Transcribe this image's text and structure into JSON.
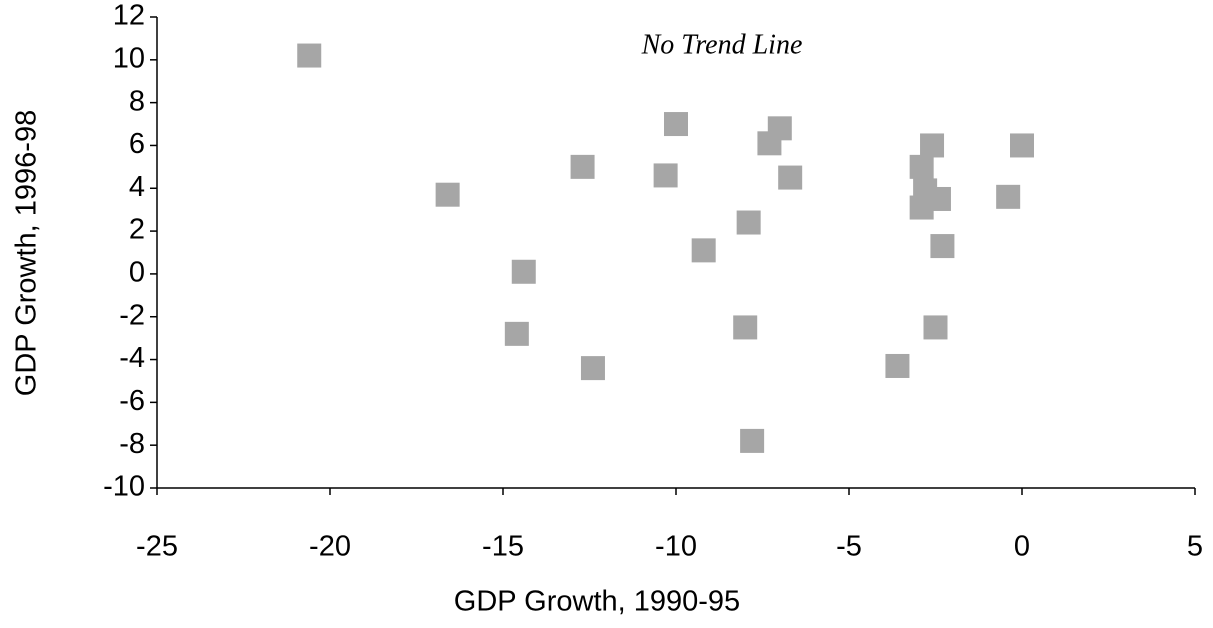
{
  "chart_data": {
    "type": "scatter",
    "annotation": "No Trend Line",
    "x_label": "GDP Growth, 1990-95",
    "y_label": "GDP Growth, 1996-98",
    "color": "#a6a6a6",
    "marker": "square",
    "x": [
      -20.6,
      -16.6,
      -14.4,
      -14.6,
      -12.7,
      -12.4,
      -10.3,
      -10.0,
      -9.2,
      -7.9,
      -8.0,
      -7.8,
      -7.3,
      -7.0,
      -6.7,
      -3.6,
      -2.9,
      -2.8,
      -2.9,
      -2.6,
      -2.4,
      -2.3,
      -2.5,
      -0.4,
      0.0
    ],
    "y": [
      10.2,
      3.7,
      0.1,
      -2.8,
      5.0,
      -4.4,
      4.6,
      7.0,
      1.1,
      2.4,
      -2.5,
      -7.8,
      6.1,
      6.8,
      4.5,
      -4.3,
      5.0,
      3.9,
      3.1,
      6.0,
      3.5,
      1.3,
      -2.5,
      3.6,
      6.0
    ],
    "xlim": [
      -25,
      5
    ],
    "xticks": [
      -25,
      -20,
      -15,
      -10,
      -5,
      0,
      5
    ],
    "ylim": [
      -10,
      12
    ],
    "yticks": [
      -10,
      -8,
      -6,
      -4,
      -2,
      0,
      2,
      4,
      6,
      8,
      10,
      12
    ]
  }
}
